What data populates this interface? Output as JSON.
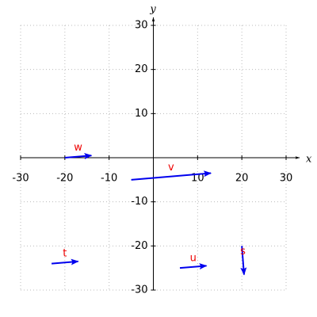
{
  "chart_data": {
    "type": "vector",
    "xlabel": "x",
    "ylabel": "y",
    "xlim": [
      -30,
      30
    ],
    "ylim": [
      -30,
      30
    ],
    "xticks": [
      -30,
      -20,
      -10,
      10,
      20,
      30
    ],
    "yticks": [
      -30,
      -20,
      -10,
      10,
      20,
      30
    ],
    "grid": true,
    "color": "#0000ee",
    "label_color": "#ee0000",
    "vectors": [
      {
        "name": "w",
        "x": -20,
        "y": 0,
        "dx": 6,
        "dy": 0.5
      },
      {
        "name": "v",
        "x": -5,
        "y": -5,
        "dx": 18,
        "dy": 1.5
      },
      {
        "name": "t",
        "x": -23,
        "y": -24,
        "dx": 6,
        "dy": 0.5
      },
      {
        "name": "u",
        "x": 6,
        "y": -25,
        "dx": 6,
        "dy": 0.5
      },
      {
        "name": "s",
        "x": 20,
        "y": -20,
        "dx": 0.5,
        "dy": -6.5
      }
    ]
  }
}
